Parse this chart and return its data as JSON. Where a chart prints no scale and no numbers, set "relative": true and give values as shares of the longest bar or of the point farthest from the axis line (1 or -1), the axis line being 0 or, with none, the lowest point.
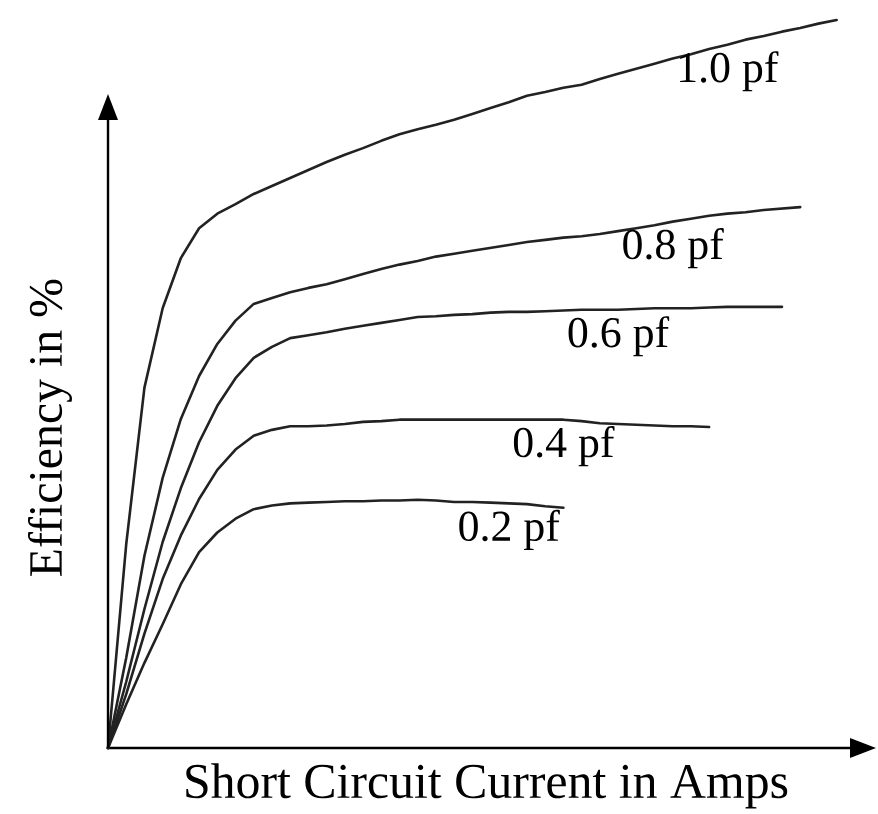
{
  "chart_data": {
    "type": "line",
    "xlabel": "Short Circuit Current in Amps",
    "ylabel": "Efficiency in %",
    "relative": true,
    "categories": [
      null,
      null,
      null,
      null,
      null,
      null,
      null,
      null,
      null,
      null,
      null,
      null,
      null,
      null,
      null,
      null,
      null,
      null,
      null,
      null,
      null,
      null,
      null,
      null,
      null,
      null,
      null,
      null,
      null,
      null,
      null,
      null,
      null,
      null,
      null,
      null,
      null,
      null,
      null,
      null,
      null
    ],
    "series": [
      {
        "name": "1.0 pf",
        "color": "#222222",
        "values": [
          0,
          0.28,
          0.495,
          0.604,
          0.673,
          0.714,
          0.734,
          0.747,
          0.761,
          0.772,
          0.783,
          0.794,
          0.805,
          0.815,
          0.824,
          0.834,
          0.843,
          0.85,
          0.856,
          0.863,
          0.871,
          0.879,
          0.887,
          0.896,
          0.901,
          0.907,
          0.911,
          0.919,
          0.926,
          0.933,
          0.94,
          0.947,
          0.953,
          0.96,
          0.966,
          0.973,
          0.978,
          0.984,
          0.989,
          0.995,
          1
        ]
      },
      {
        "name": "0.8 pf",
        "color": "#222222",
        "values": [
          0,
          0.124,
          0.264,
          0.371,
          0.452,
          0.511,
          0.555,
          0.587,
          0.61,
          0.618,
          0.626,
          0.632,
          0.637,
          0.644,
          0.651,
          0.658,
          0.664,
          0.669,
          0.675,
          0.679,
          0.683,
          0.687,
          0.691,
          0.695,
          0.698,
          0.701,
          0.703,
          0.706,
          0.71,
          0.714,
          0.718,
          0.723,
          0.727,
          0.731,
          0.734,
          0.736,
          0.739,
          0.741,
          0.743,
          null,
          null
        ]
      },
      {
        "name": "0.6 pf",
        "color": "#222222",
        "values": [
          0,
          0.091,
          0.191,
          0.283,
          0.357,
          0.42,
          0.47,
          0.508,
          0.536,
          0.551,
          0.563,
          0.567,
          0.571,
          0.576,
          0.58,
          0.584,
          0.588,
          0.592,
          0.593,
          0.595,
          0.596,
          0.598,
          0.599,
          0.599,
          0.6,
          0.601,
          0.602,
          0.602,
          0.602,
          0.603,
          0.604,
          0.604,
          0.604,
          0.605,
          0.606,
          0.606,
          0.606,
          0.606,
          null,
          null,
          null
        ]
      },
      {
        "name": "0.4 pf",
        "color": "#222222",
        "values": [
          0,
          0.074,
          0.157,
          0.232,
          0.292,
          0.342,
          0.382,
          0.41,
          0.429,
          0.437,
          0.442,
          0.442,
          0.443,
          0.445,
          0.448,
          0.449,
          0.451,
          0.451,
          0.451,
          0.451,
          0.451,
          0.451,
          0.451,
          0.451,
          0.451,
          0.451,
          0.449,
          0.446,
          0.445,
          0.444,
          0.443,
          0.442,
          0.442,
          0.441,
          null,
          null,
          null,
          null,
          null,
          null,
          null
        ]
      },
      {
        "name": "0.2 pf",
        "color": "#222222",
        "values": [
          0,
          0.06,
          0.117,
          0.17,
          0.225,
          0.269,
          0.296,
          0.315,
          0.328,
          0.333,
          0.336,
          0.337,
          0.338,
          0.339,
          0.339,
          0.34,
          0.34,
          0.341,
          0.34,
          0.338,
          0.338,
          0.337,
          0.336,
          0.335,
          0.332,
          0.33,
          null,
          null,
          null,
          null,
          null,
          null,
          null,
          null,
          null,
          null,
          null,
          null,
          null,
          null,
          null
        ]
      }
    ]
  }
}
